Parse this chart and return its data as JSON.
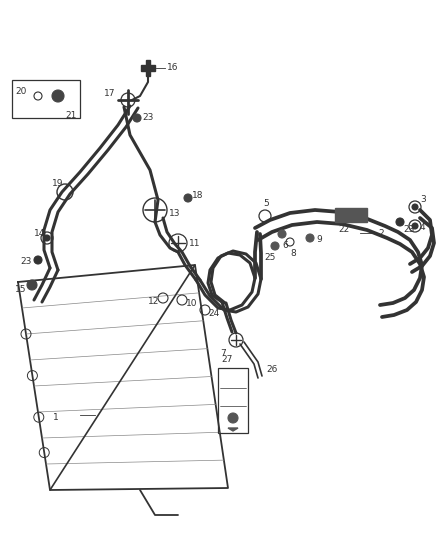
{
  "bg_color": "#ffffff",
  "line_color": "#333333",
  "figsize": [
    4.38,
    5.33
  ],
  "dpi": 100,
  "lw_hose": 2.2,
  "lw_thin": 1.0,
  "fs": 6.5
}
